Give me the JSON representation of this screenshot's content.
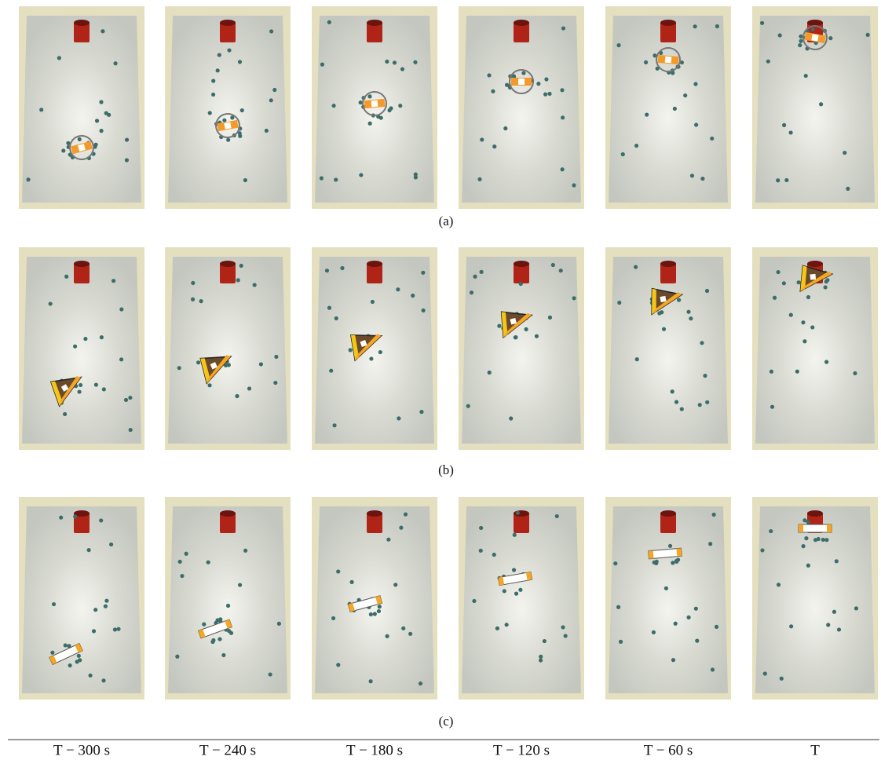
{
  "figure": {
    "rows": [
      {
        "label": "(a)"
      },
      {
        "label": "(b)"
      },
      {
        "label": "(c)"
      }
    ],
    "columns": [
      "T − 300 s",
      "T − 240 s",
      "T − 180 s",
      "T − 120 s",
      "T − 60 s",
      "T"
    ]
  }
}
